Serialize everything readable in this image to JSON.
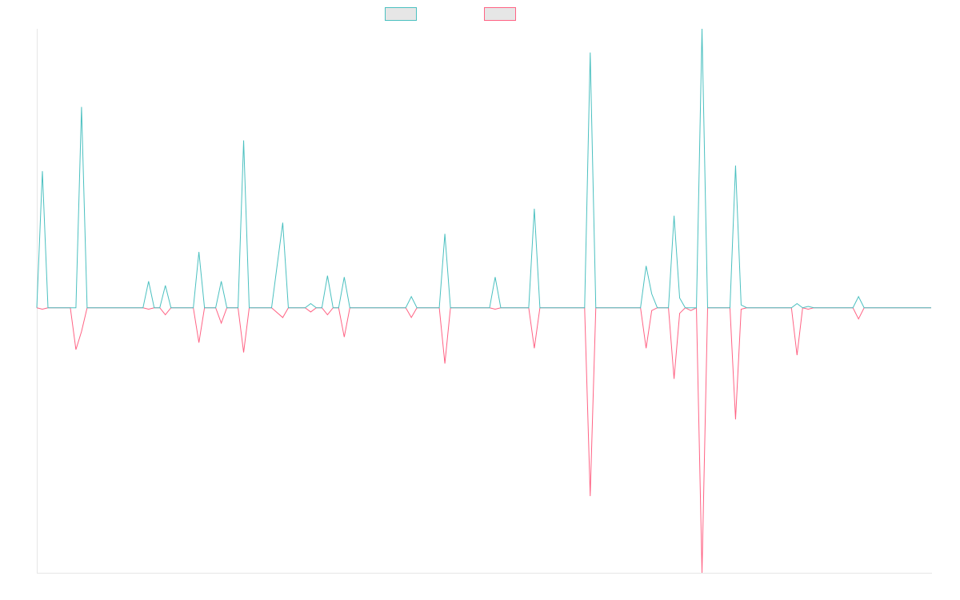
{
  "chart_data": {
    "type": "line",
    "title": "",
    "xlabel": "",
    "ylabel": "",
    "grid": false,
    "legend_position": "top-center",
    "x_count": 161,
    "ylim": [
      -95,
      100
    ],
    "series": [
      {
        "name": "",
        "color": "#4bc0c0",
        "fill": "#e6e6e6",
        "points": [
          [
            0,
            0
          ],
          [
            1,
            49
          ],
          [
            2,
            0
          ],
          [
            7,
            0
          ],
          [
            8,
            72
          ],
          [
            9,
            0
          ],
          [
            19,
            0
          ],
          [
            20,
            9.5
          ],
          [
            21,
            0
          ],
          [
            22,
            0
          ],
          [
            23,
            8
          ],
          [
            24,
            0
          ],
          [
            28,
            0
          ],
          [
            29,
            20
          ],
          [
            30,
            0
          ],
          [
            32,
            0
          ],
          [
            33,
            9.5
          ],
          [
            34,
            0
          ],
          [
            36,
            0
          ],
          [
            37,
            60
          ],
          [
            38,
            0
          ],
          [
            42,
            0
          ],
          [
            44,
            30.5
          ],
          [
            45,
            0
          ],
          [
            48,
            0
          ],
          [
            49,
            1.5
          ],
          [
            50,
            0
          ],
          [
            51,
            0
          ],
          [
            52,
            11.5
          ],
          [
            53,
            0
          ],
          [
            54,
            0
          ],
          [
            55,
            11
          ],
          [
            56,
            0
          ],
          [
            66,
            0
          ],
          [
            67,
            4
          ],
          [
            68,
            0
          ],
          [
            72,
            0
          ],
          [
            73,
            26.5
          ],
          [
            74,
            0
          ],
          [
            81,
            0
          ],
          [
            82,
            11
          ],
          [
            83,
            0
          ],
          [
            88,
            0
          ],
          [
            89,
            35.5
          ],
          [
            90,
            0
          ],
          [
            98,
            0
          ],
          [
            99,
            91.5
          ],
          [
            100,
            0
          ],
          [
            108,
            0
          ],
          [
            109,
            15
          ],
          [
            110,
            5
          ],
          [
            111,
            0
          ],
          [
            113,
            0
          ],
          [
            114,
            33
          ],
          [
            115,
            3.5
          ],
          [
            116,
            0
          ],
          [
            118,
            0
          ],
          [
            119,
            100
          ],
          [
            120,
            0
          ],
          [
            124,
            0
          ],
          [
            125,
            51
          ],
          [
            126,
            1
          ],
          [
            127,
            0
          ],
          [
            135,
            0
          ],
          [
            136,
            1.5
          ],
          [
            137,
            0
          ],
          [
            138,
            0.5
          ],
          [
            139,
            0
          ],
          [
            146,
            0
          ],
          [
            147,
            4
          ],
          [
            148,
            0
          ],
          [
            160,
            0
          ]
        ]
      },
      {
        "name": "",
        "color": "#ff6384",
        "fill": "#e6e6e6",
        "points": [
          [
            0,
            0
          ],
          [
            1,
            -0.5
          ],
          [
            2,
            0
          ],
          [
            6,
            0
          ],
          [
            7,
            -15
          ],
          [
            8,
            -8.5
          ],
          [
            9,
            0
          ],
          [
            19,
            0
          ],
          [
            20,
            -0.5
          ],
          [
            21,
            0
          ],
          [
            22,
            0
          ],
          [
            23,
            -2.5
          ],
          [
            24,
            0
          ],
          [
            28,
            0
          ],
          [
            29,
            -12.5
          ],
          [
            30,
            0
          ],
          [
            32,
            0
          ],
          [
            33,
            -5.5
          ],
          [
            34,
            0
          ],
          [
            36,
            0
          ],
          [
            37,
            -16
          ],
          [
            38,
            0
          ],
          [
            39,
            0
          ],
          [
            42,
            0
          ],
          [
            44,
            -3.5
          ],
          [
            45,
            0
          ],
          [
            48,
            0
          ],
          [
            49,
            -1.5
          ],
          [
            50,
            0
          ],
          [
            51,
            0
          ],
          [
            52,
            -2.5
          ],
          [
            53,
            0
          ],
          [
            54,
            0
          ],
          [
            55,
            -10.5
          ],
          [
            56,
            0
          ],
          [
            66,
            0
          ],
          [
            67,
            -3.5
          ],
          [
            68,
            0
          ],
          [
            72,
            0
          ],
          [
            73,
            -20
          ],
          [
            74,
            0
          ],
          [
            81,
            0
          ],
          [
            82,
            -0.5
          ],
          [
            83,
            0
          ],
          [
            88,
            0
          ],
          [
            89,
            -14.5
          ],
          [
            90,
            0
          ],
          [
            98,
            0
          ],
          [
            99,
            -67.5
          ],
          [
            100,
            0
          ],
          [
            108,
            0
          ],
          [
            109,
            -14.5
          ],
          [
            110,
            -1
          ],
          [
            111,
            0
          ],
          [
            113,
            0
          ],
          [
            114,
            -25.5
          ],
          [
            115,
            -2
          ],
          [
            116,
            0
          ],
          [
            117,
            -1
          ],
          [
            118,
            0
          ],
          [
            119,
            -95
          ],
          [
            120,
            0
          ],
          [
            124,
            0
          ],
          [
            125,
            -40
          ],
          [
            126,
            -0.5
          ],
          [
            127,
            0
          ],
          [
            135,
            0
          ],
          [
            136,
            -17
          ],
          [
            137,
            0
          ],
          [
            138,
            -0.5
          ],
          [
            139,
            0
          ],
          [
            146,
            0
          ],
          [
            147,
            -4
          ],
          [
            148,
            0
          ],
          [
            160,
            0
          ]
        ]
      }
    ]
  }
}
